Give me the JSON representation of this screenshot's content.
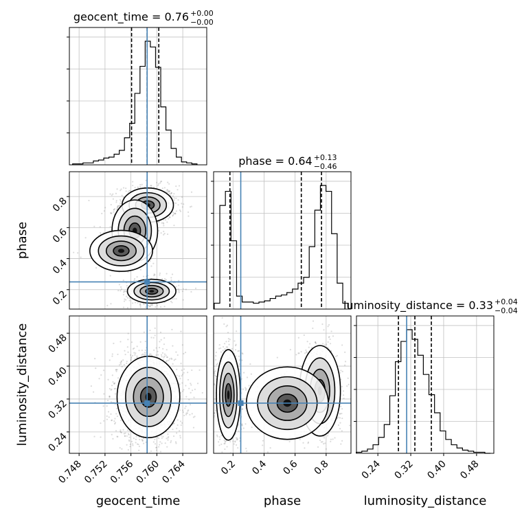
{
  "colors": {
    "truth": "#4682b4",
    "hist": "#000000",
    "grid": "#c0c0c0",
    "quantile": "#000000",
    "points": "#7f7f7f"
  },
  "chart_data": {
    "type": "corner",
    "parameters": [
      "geocent_time",
      "phase",
      "luminosity_distance"
    ],
    "axis_labels": {
      "x": [
        "geocent_time",
        "phase",
        "luminosity_distance"
      ],
      "y": [
        "phase",
        "luminosity_distance"
      ]
    },
    "ranges": {
      "geocent_time": [
        0.7465,
        0.7677
      ],
      "phase": [
        0.075,
        0.96
      ],
      "luminosity_distance": [
        0.188,
        0.522
      ]
    },
    "ticks": {
      "geocent_time": [
        "0.748",
        "0.752",
        "0.756",
        "0.760",
        "0.764"
      ],
      "phase": [
        "0.2",
        "0.4",
        "0.6",
        "0.8"
      ],
      "luminosity_distance": [
        "0.24",
        "0.32",
        "0.40",
        "0.48"
      ]
    },
    "truths": {
      "geocent_time": 0.7585,
      "phase": 0.25,
      "luminosity_distance": 0.31
    },
    "titles": [
      {
        "param": "geocent_time",
        "text": "geocent_time = 0.76",
        "plus": "+0.00",
        "minus": "−0.00"
      },
      {
        "param": "phase",
        "text": "phase = 0.64",
        "plus": "+0.13",
        "minus": "−0.46"
      },
      {
        "param": "luminosity_distance",
        "text": "luminosity_distance = 0.33",
        "plus": "+0.04",
        "minus": "−0.04"
      }
    ],
    "quantiles": {
      "geocent_time": [
        0.7561,
        0.7585,
        0.7603
      ],
      "phase": [
        0.18,
        0.64,
        0.77
      ],
      "luminosity_distance": [
        0.29,
        0.33,
        0.37
      ]
    },
    "histograms": {
      "geocent_time": {
        "bin_centers": [
          0.7474,
          0.7482,
          0.749,
          0.7498,
          0.7506,
          0.7514,
          0.7522,
          0.753,
          0.7538,
          0.7546,
          0.7554,
          0.7562,
          0.757,
          0.7578,
          0.7586,
          0.7594,
          0.7602,
          0.761,
          0.7618,
          0.7626,
          0.7634,
          0.7642,
          0.765,
          0.7658
        ],
        "counts": [
          1,
          1,
          2,
          2,
          4,
          5,
          7,
          8,
          11,
          15,
          28,
          43,
          74,
          102,
          128,
          122,
          101,
          60,
          36,
          17,
          8,
          3,
          2,
          1
        ]
      },
      "phase": {
        "bin_centers": [
          0.097,
          0.133,
          0.169,
          0.205,
          0.241,
          0.277,
          0.313,
          0.349,
          0.385,
          0.421,
          0.457,
          0.493,
          0.529,
          0.565,
          0.601,
          0.637,
          0.673,
          0.709,
          0.745,
          0.781,
          0.817,
          0.853,
          0.889,
          0.925
        ],
        "counts": [
          5,
          88,
          100,
          58,
          11,
          6,
          6,
          5,
          6,
          7,
          9,
          11,
          12,
          14,
          17,
          22,
          27,
          53,
          84,
          105,
          100,
          64,
          22,
          5
        ]
      },
      "luminosity_distance": {
        "bin_centers": [
          0.1942,
          0.2078,
          0.2214,
          0.235,
          0.2486,
          0.2622,
          0.2758,
          0.2894,
          0.303,
          0.3166,
          0.3302,
          0.3438,
          0.3574,
          0.371,
          0.3846,
          0.3982,
          0.4118,
          0.4254,
          0.439,
          0.4526,
          0.4662,
          0.4798,
          0.4934,
          0.507
        ],
        "counts": [
          1,
          2,
          4,
          8,
          15,
          27,
          54,
          86,
          105,
          116,
          107,
          92,
          74,
          55,
          38,
          21,
          13,
          8,
          5,
          3,
          2,
          1,
          1,
          0
        ]
      }
    },
    "clusters": {
      "geocent_time_vs_phase": [
        {
          "x": 0.7586,
          "y": 0.745,
          "sx": 0.0018,
          "sy": 0.05,
          "w": 0.5
        },
        {
          "x": 0.7566,
          "y": 0.58,
          "sx": 0.0016,
          "sy": 0.09,
          "w": 0.12
        },
        {
          "x": 0.7545,
          "y": 0.45,
          "sx": 0.0022,
          "sy": 0.06,
          "w": 0.08
        },
        {
          "x": 0.7592,
          "y": 0.19,
          "sx": 0.0017,
          "sy": 0.035,
          "w": 0.3
        }
      ],
      "geocent_time_vs_luminosity_distance": [
        {
          "x": 0.7587,
          "y": 0.325,
          "sx": 0.0022,
          "sy": 0.045,
          "w": 1.0
        }
      ],
      "phase_vs_luminosity_distance": [
        {
          "x": 0.17,
          "y": 0.33,
          "sx": 0.035,
          "sy": 0.05,
          "w": 0.42
        },
        {
          "x": 0.76,
          "y": 0.34,
          "sx": 0.06,
          "sy": 0.05,
          "w": 0.43
        },
        {
          "x": 0.55,
          "y": 0.31,
          "sx": 0.12,
          "sy": 0.04,
          "w": 0.15
        }
      ]
    }
  }
}
